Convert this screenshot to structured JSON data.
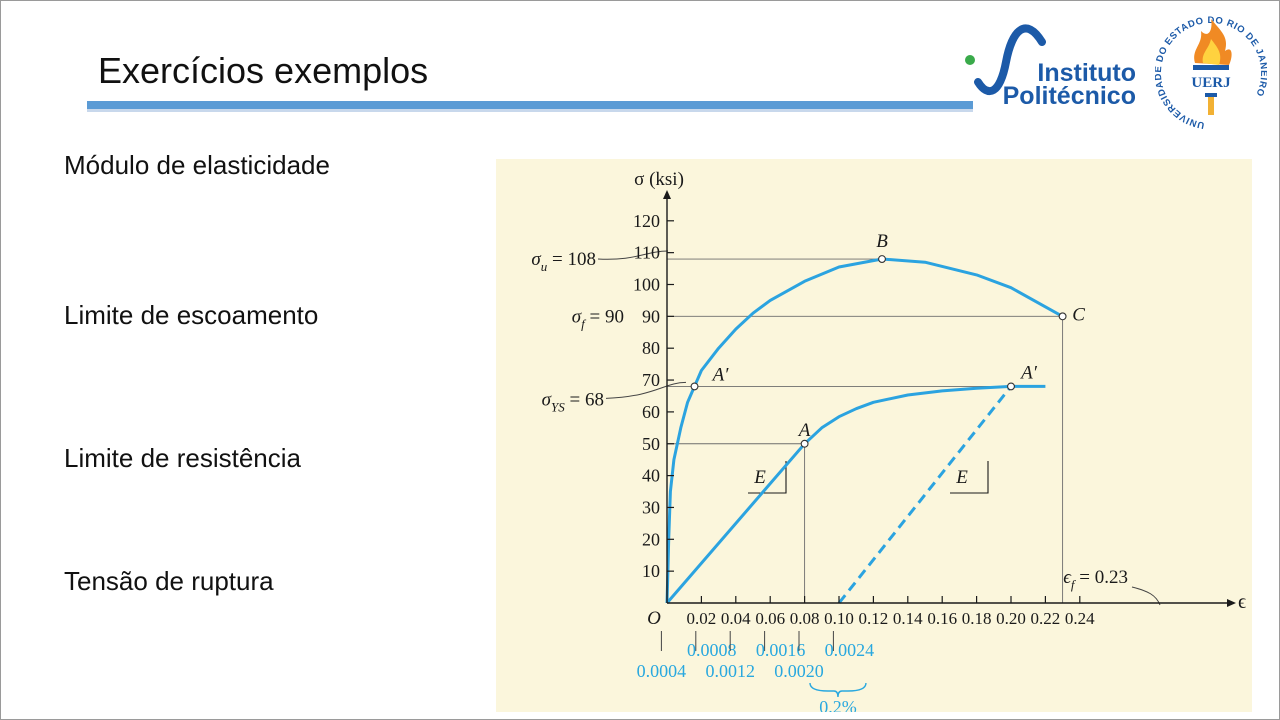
{
  "slide": {
    "title": "Exercícios exemplos",
    "labels": [
      "Módulo de elasticidade",
      "Limite de escoamento",
      "Limite de resistência",
      "Tensão de ruptura"
    ]
  },
  "logos": {
    "ip_line1": "Instituto",
    "ip_line2": "Politécnico",
    "uerj_text": "UERJ",
    "uerj_ring": "UNIVERSIDADE DO ESTADO DO RIO DE JANEIRO"
  },
  "chart_data": {
    "type": "line",
    "ylabel": "σ (ksi)",
    "xlabel": "ϵ",
    "origin_label": "O",
    "xlim": [
      0,
      0.24
    ],
    "ylim": [
      0,
      120
    ],
    "x_ticks": [
      "0.02",
      "0.04",
      "0.06",
      "0.08",
      "0.10",
      "0.12",
      "0.14",
      "0.16",
      "0.18",
      "0.20",
      "0.22",
      "0.24"
    ],
    "y_ticks": [
      "10",
      "20",
      "30",
      "40",
      "50",
      "60",
      "70",
      "80",
      "90",
      "100",
      "110",
      "120"
    ],
    "strain_scale_ticks": [
      "0.0004",
      "0.0008",
      "0.0012",
      "0.0016",
      "0.0020",
      "0.0024"
    ],
    "offset_note": "0.2%",
    "series": [
      {
        "curve": "full",
        "x": [
          0,
          0.0005,
          0.001,
          0.002,
          0.004,
          0.008,
          0.012,
          0.016,
          0.02,
          0.03,
          0.04,
          0.05,
          0.06,
          0.08,
          0.1,
          0.125,
          0.15,
          0.18,
          0.2,
          0.23
        ],
        "y": [
          0,
          10,
          20,
          35,
          45,
          55,
          63,
          68,
          73,
          80,
          86,
          91,
          95,
          101,
          105.5,
          108,
          107,
          103,
          99,
          90
        ]
      },
      {
        "curve": "magnified",
        "x": [
          0,
          0.08,
          0.09,
          0.1,
          0.11,
          0.12,
          0.14,
          0.16,
          0.18,
          0.2,
          0.22
        ],
        "y": [
          0,
          50,
          55,
          58.5,
          61,
          63,
          65.3,
          66.6,
          67.4,
          68,
          68
        ]
      },
      {
        "curve": "offset",
        "dashed": true,
        "x": [
          0.1,
          0.2
        ],
        "y": [
          0,
          68
        ]
      }
    ],
    "annotations": [
      {
        "text": "σu = 108",
        "sym": "σ",
        "sub": "u",
        "rest": " = 108",
        "x": 0,
        "y": 108
      },
      {
        "text": "σf = 90",
        "sym": "σ",
        "sub": "f",
        "rest": " = 90",
        "x": 0,
        "y": 90
      },
      {
        "text": "σYS = 68",
        "sym": "σ",
        "sub": "YS",
        "rest": " = 68",
        "x": 0,
        "y": 68
      },
      {
        "text": "ϵf = 0.23",
        "sym": "ϵ",
        "sub": "f",
        "rest": " = 0.23",
        "x": 0.23,
        "y": 0
      }
    ],
    "points": [
      {
        "label": "B",
        "x": 0.125,
        "y": 108
      },
      {
        "label": "C",
        "x": 0.23,
        "y": 90
      },
      {
        "label": "A′",
        "x": 0.016,
        "y": 68
      },
      {
        "label": "A",
        "x": 0.08,
        "y": 50
      },
      {
        "label": "A′",
        "x": 0.2,
        "y": 68
      }
    ],
    "slope_labels": [
      "E",
      "E"
    ],
    "colors": {
      "curve": "#2ba3e0",
      "axis": "#1a1a1a",
      "background": "#fbf6dc",
      "scale_text": "#29a8df"
    }
  }
}
